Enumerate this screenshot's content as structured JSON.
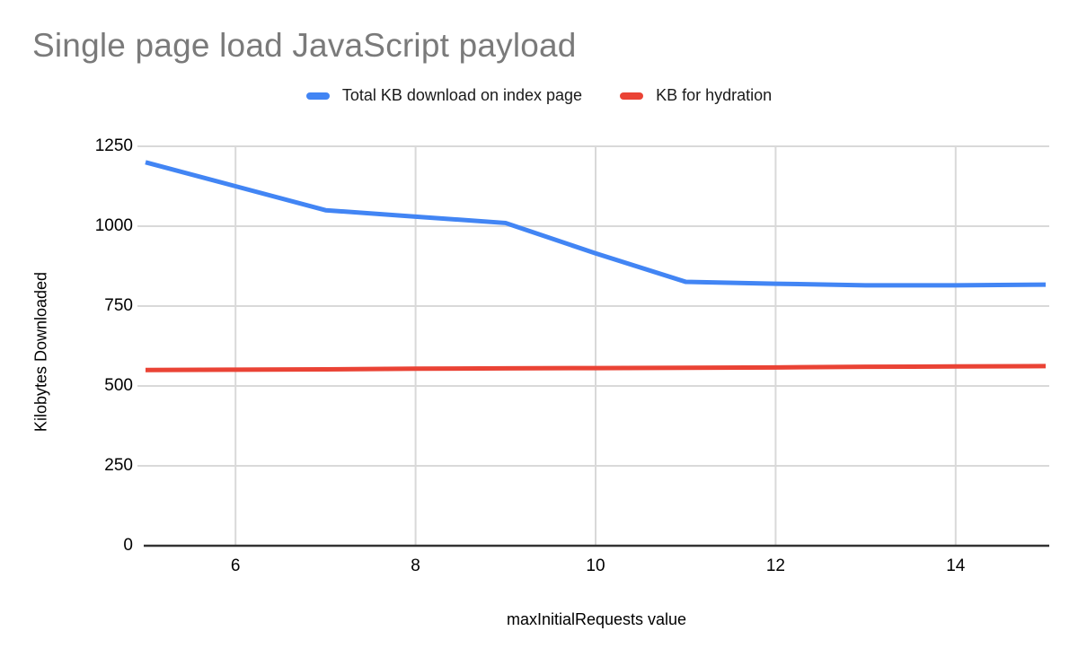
{
  "title": {
    "text": "Single page load JavaScript payload",
    "color": "#7a7a7a"
  },
  "legend": {
    "items": [
      {
        "label": "Total KB download on index page",
        "color": "#4285f4",
        "icon": "line-swatch"
      },
      {
        "label": "KB for hydration",
        "color": "#ea4335",
        "icon": "line-swatch"
      }
    ]
  },
  "chart_data": {
    "type": "line",
    "title": "Single page load JavaScript payload",
    "xlabel": "maxInitialRequests value",
    "ylabel": "Kilobytes Downloaded",
    "x": [
      5,
      6,
      7,
      8,
      9,
      10,
      11,
      12,
      13,
      14,
      15
    ],
    "series": [
      {
        "name": "Total KB download on index page",
        "color": "#4285f4",
        "values": [
          1200,
          1125,
          1050,
          1030,
          1010,
          915,
          826,
          820,
          815,
          815,
          817
        ]
      },
      {
        "name": "KB for hydration",
        "color": "#ea4335",
        "values": [
          550,
          551,
          552,
          554,
          555,
          556,
          557,
          558,
          560,
          561,
          562
        ]
      }
    ],
    "xlim": [
      5,
      15
    ],
    "ylim": [
      0,
      1250
    ],
    "x_ticks": [
      6,
      8,
      10,
      12,
      14
    ],
    "y_ticks": [
      0,
      250,
      500,
      750,
      1000,
      1250
    ],
    "grid": true,
    "legend_position": "top",
    "colors": {
      "grid": "#d9d9d9",
      "axis": "#333333",
      "tick_text": "#000000",
      "background": "#ffffff"
    }
  }
}
